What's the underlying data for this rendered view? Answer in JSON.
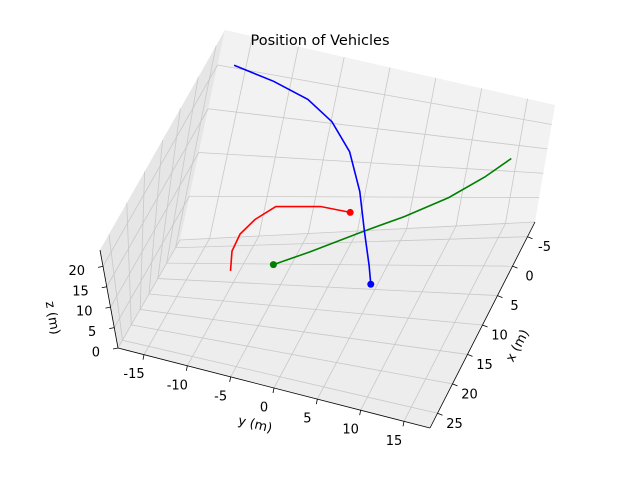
{
  "chart_data": {
    "type": "line3d",
    "title": "Position of Vehicles",
    "xlabel": "x (m)",
    "ylabel": "y (m)",
    "zlabel": "z (m)",
    "xlim": [
      -7.5,
      27.5
    ],
    "ylim": [
      -18,
      18
    ],
    "zlim": [
      0,
      24
    ],
    "xticks": [
      -5,
      0,
      5,
      10,
      15,
      20,
      25
    ],
    "yticks": [
      -15,
      -10,
      -5,
      0,
      5,
      10,
      15
    ],
    "zticks": [
      0,
      5,
      10,
      15,
      20
    ],
    "grid": true,
    "series": [
      {
        "color": "#ff0000",
        "marker": "end",
        "x": [
          13.5,
          9.5,
          5.8,
          2.5,
          -0.5,
          -1.2,
          -0.5
        ],
        "y": [
          -8.9,
          -9.8,
          -9.9,
          -9.2,
          -7.8,
          -3.3,
          0
        ],
        "z": [
          8,
          8,
          8,
          8,
          8,
          8,
          8
        ]
      },
      {
        "color": "#008000",
        "marker": "start",
        "x": [
          11,
          8,
          4,
          1.5,
          -1.5,
          -4.5,
          -7
        ],
        "y": [
          -5,
          -2,
          2.3,
          6,
          9.7,
          12.5,
          14.5
        ],
        "z": [
          8,
          8.3,
          9,
          10,
          11,
          12,
          13
        ]
      },
      {
        "color": "#0000ff",
        "marker": "end",
        "x": [
          -4,
          -3.5,
          -3,
          -2.5,
          -2,
          -1,
          0.5,
          2.5,
          4
        ],
        "y": [
          -15.5,
          -11,
          -7,
          -4,
          -1.5,
          0.5,
          2,
          3.5,
          4.3
        ],
        "z": [
          23,
          22.5,
          21.5,
          19.5,
          16,
          11,
          6,
          2,
          0
        ]
      }
    ]
  }
}
